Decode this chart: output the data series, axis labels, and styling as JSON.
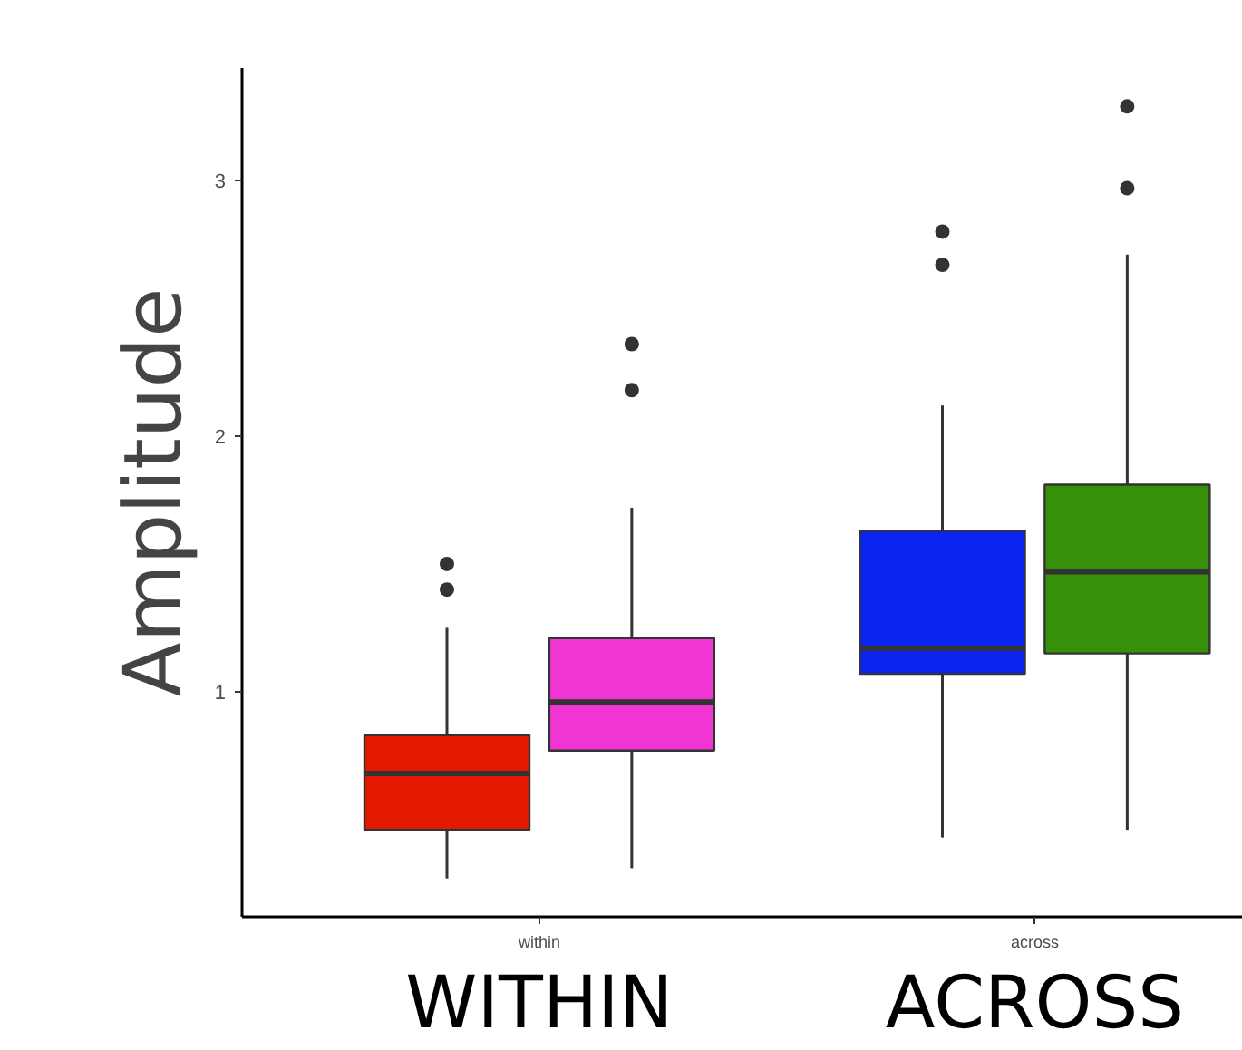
{
  "chart_data": {
    "type": "box",
    "ylabel": "Amplitude",
    "categories": [
      "within",
      "across"
    ],
    "ylim": [
      0.12,
      3.44
    ],
    "yticks": [
      1,
      2,
      3
    ],
    "grid": false,
    "annotations": [
      "WITHIN",
      "ACROSS"
    ],
    "series": [
      {
        "colors": [
          "#e31a00",
          "#0a24f0"
        ],
        "boxes": [
          {
            "low": 0.27,
            "q1": 0.46,
            "median": 0.68,
            "q3": 0.83,
            "high": 1.25,
            "outliers": [
              1.4,
              1.5
            ]
          },
          {
            "low": 0.43,
            "q1": 1.07,
            "median": 1.17,
            "q3": 1.63,
            "high": 2.12,
            "outliers": [
              2.67,
              2.8
            ]
          }
        ]
      },
      {
        "colors": [
          "#f035d4",
          "#36900a"
        ],
        "boxes": [
          {
            "low": 0.31,
            "q1": 0.77,
            "median": 0.96,
            "q3": 1.21,
            "high": 1.72,
            "outliers": [
              2.18,
              2.36
            ]
          },
          {
            "low": 0.46,
            "q1": 1.15,
            "median": 1.47,
            "q3": 1.81,
            "high": 2.71,
            "outliers": [
              2.97,
              3.29
            ]
          }
        ]
      }
    ]
  }
}
